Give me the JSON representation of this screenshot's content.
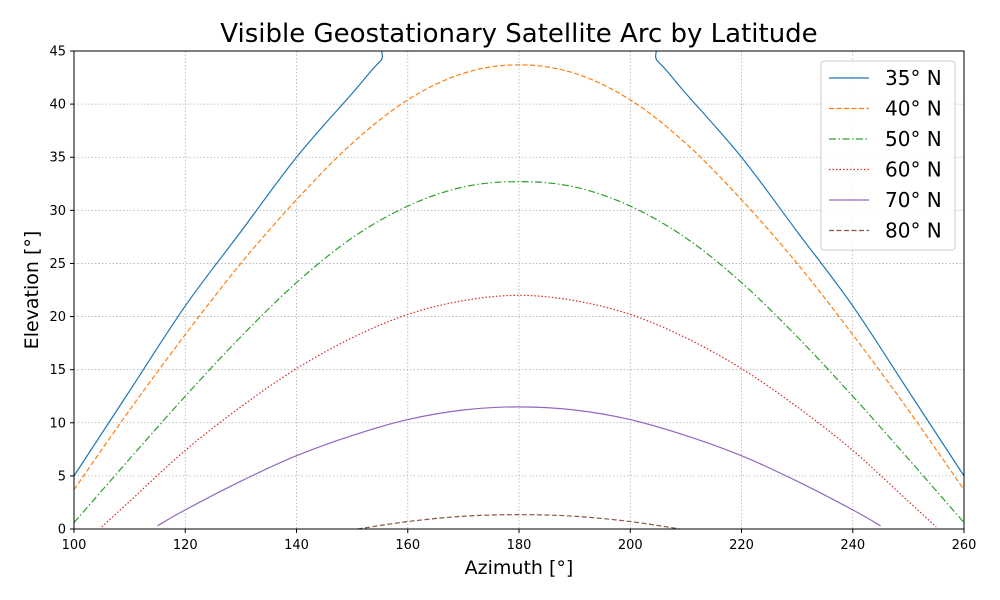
{
  "chart_data": {
    "type": "line",
    "title": "Visible Geostationary Satellite Arc by Latitude",
    "xlabel": "Azimuth [°]",
    "ylabel": "Elevation [°]",
    "xlim": [
      100,
      260
    ],
    "ylim": [
      0,
      45
    ],
    "xticks": [
      "100",
      "120",
      "140",
      "160",
      "180",
      "200",
      "220",
      "240",
      "260"
    ],
    "yticks": [
      "0",
      "5",
      "10",
      "15",
      "20",
      "25",
      "30",
      "35",
      "40",
      "45"
    ],
    "grid": true,
    "legend_position": "top-right",
    "series": [
      {
        "name": "35° N",
        "color": "#1f77b4",
        "dash": "solid",
        "x": [
          100,
          110,
          120,
          130,
          140,
          150,
          155,
          160,
          200,
          205,
          210,
          220,
          230,
          240,
          250,
          260
        ],
        "y": [
          5.0,
          13.0,
          21.0,
          28.0,
          35.0,
          41.0,
          44.0,
          46.0,
          46.0,
          44.0,
          41.0,
          35.0,
          28.0,
          21.0,
          13.0,
          5.0
        ]
      },
      {
        "name": "40° N",
        "color": "#ff7f0e",
        "dash": "dashed",
        "x": [
          100,
          110,
          120,
          130,
          140,
          150,
          160,
          170,
          180,
          190,
          200,
          210,
          220,
          230,
          240,
          250,
          260
        ],
        "y": [
          3.7,
          11.2,
          18.3,
          25.0,
          31.0,
          36.3,
          40.4,
          42.9,
          43.7,
          42.9,
          40.4,
          36.3,
          31.0,
          25.0,
          18.3,
          11.2,
          3.7
        ]
      },
      {
        "name": "50° N",
        "color": "#2ca02c",
        "dash": "dashdot",
        "x": [
          100,
          110,
          120,
          130,
          140,
          150,
          160,
          170,
          180,
          190,
          200,
          210,
          220,
          230,
          240,
          250,
          260
        ],
        "y": [
          0.6,
          6.6,
          12.5,
          18.1,
          23.2,
          27.4,
          30.4,
          32.2,
          32.7,
          32.2,
          30.4,
          27.4,
          23.2,
          18.1,
          12.5,
          6.6,
          0.6
        ]
      },
      {
        "name": "60° N",
        "color": "#d62728",
        "dash": "dotted",
        "x": [
          105,
          110,
          120,
          130,
          140,
          150,
          160,
          170,
          180,
          190,
          200,
          210,
          220,
          230,
          240,
          250,
          255
        ],
        "y": [
          0.2,
          2.6,
          7.4,
          11.5,
          15.1,
          18.0,
          20.2,
          21.5,
          22.0,
          21.5,
          20.2,
          18.0,
          15.1,
          11.5,
          7.4,
          2.6,
          0.2
        ]
      },
      {
        "name": "70° N",
        "color": "#9467bd",
        "dash": "solid",
        "x": [
          115,
          120,
          130,
          140,
          150,
          160,
          170,
          180,
          190,
          200,
          210,
          220,
          230,
          240,
          245
        ],
        "y": [
          0.3,
          1.8,
          4.5,
          6.9,
          8.8,
          10.3,
          11.2,
          11.5,
          11.2,
          10.3,
          8.8,
          6.9,
          4.5,
          1.8,
          0.3
        ]
      },
      {
        "name": "80° N",
        "color": "#8c564b",
        "dash": "dashed",
        "x": [
          151,
          160,
          170,
          180,
          190,
          200,
          209
        ],
        "y": [
          0.0,
          0.7,
          1.2,
          1.35,
          1.2,
          0.7,
          0.0
        ]
      }
    ]
  }
}
